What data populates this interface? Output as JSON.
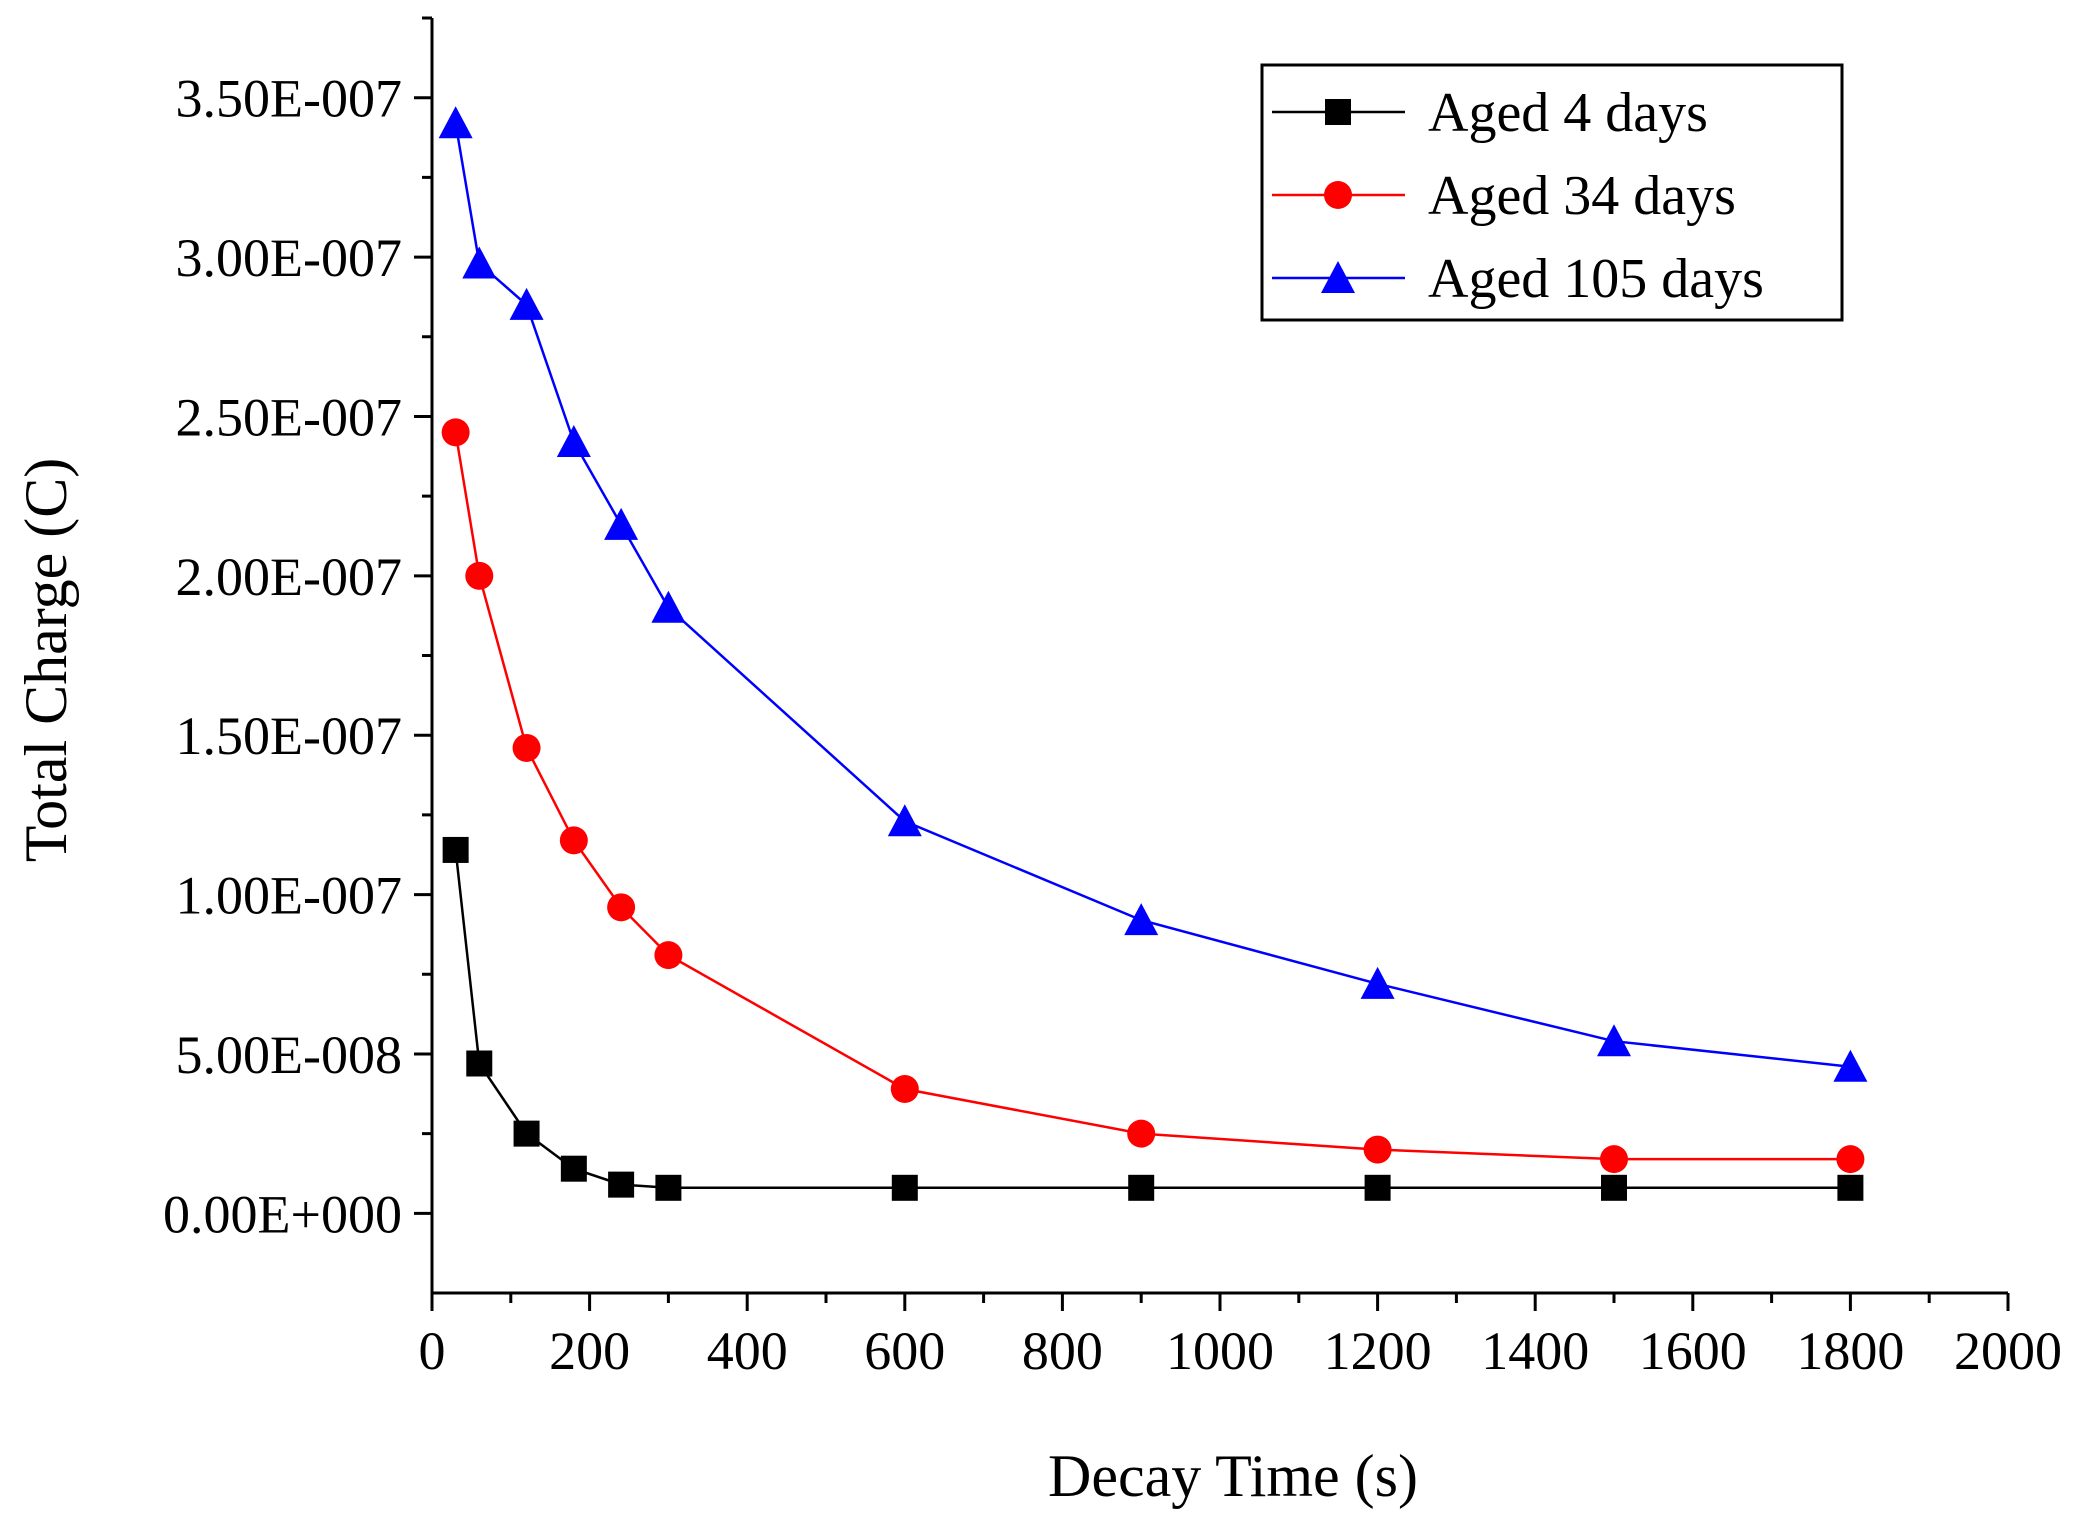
{
  "chart_data": {
    "type": "line",
    "title": "",
    "xlabel": "Decay Time (s)",
    "ylabel": "Total Charge (C)",
    "xlim": [
      0,
      2000
    ],
    "ylim": [
      -2.5e-08,
      3.75e-07
    ],
    "x_ticks": [
      0,
      200,
      400,
      600,
      800,
      1000,
      1200,
      1400,
      1600,
      1800,
      2000
    ],
    "x_tick_labels": [
      "0",
      "200",
      "400",
      "600",
      "800",
      "1000",
      "1200",
      "1400",
      "1600",
      "1800",
      "2000"
    ],
    "y_ticks": [
      0,
      5e-08,
      1e-07,
      1.5e-07,
      2e-07,
      2.5e-07,
      3e-07,
      3.5e-07
    ],
    "y_tick_labels": [
      "0.00E+000",
      "5.00E-008",
      "1.00E-007",
      "1.50E-007",
      "2.00E-007",
      "2.50E-007",
      "3.00E-007",
      "3.50E-007"
    ],
    "grid": false,
    "legend_position": "top-right",
    "series": [
      {
        "name": "Aged 4 days",
        "color": "#000000",
        "marker": "square",
        "x": [
          30,
          60,
          120,
          180,
          240,
          300,
          600,
          900,
          1200,
          1500,
          1800
        ],
        "y": [
          1.14e-07,
          4.7e-08,
          2.5e-08,
          1.4e-08,
          9e-09,
          8e-09,
          8e-09,
          8e-09,
          8e-09,
          8e-09,
          8e-09
        ]
      },
      {
        "name": "Aged 34 days",
        "color": "#ff0000",
        "marker": "circle",
        "x": [
          30,
          60,
          120,
          180,
          240,
          300,
          600,
          900,
          1200,
          1500,
          1800
        ],
        "y": [
          2.45e-07,
          2e-07,
          1.46e-07,
          1.17e-07,
          9.6e-08,
          8.1e-08,
          3.9e-08,
          2.5e-08,
          2e-08,
          1.7e-08,
          1.7e-08
        ]
      },
      {
        "name": "Aged 105 days",
        "color": "#0000ff",
        "marker": "triangle",
        "x": [
          30,
          60,
          120,
          180,
          240,
          300,
          600,
          900,
          1200,
          1500,
          1800
        ],
        "y": [
          3.42e-07,
          2.98e-07,
          2.85e-07,
          2.42e-07,
          2.16e-07,
          1.9e-07,
          1.23e-07,
          9.2e-08,
          7.2e-08,
          5.4e-08,
          4.6e-08
        ]
      }
    ]
  }
}
